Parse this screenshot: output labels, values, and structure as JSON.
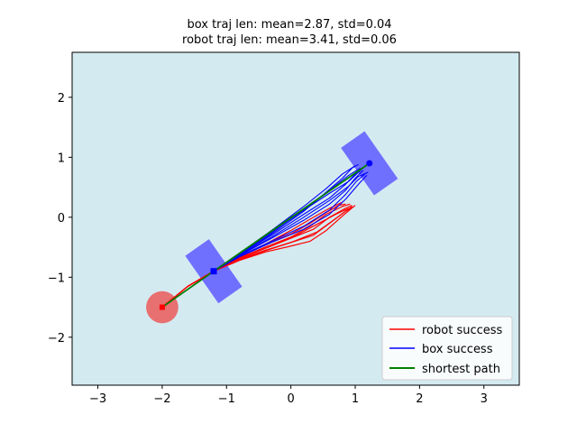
{
  "chart_data": {
    "type": "line",
    "title_lines": [
      "box traj len: mean=2.87, std=0.04",
      "robot traj len: mean=3.41, std=0.06"
    ],
    "xlabel": "",
    "ylabel": "",
    "xlim": [
      -3.4,
      3.55
    ],
    "ylim": [
      -2.8,
      2.75
    ],
    "xticks": [
      -3,
      -2,
      -1,
      0,
      1,
      2,
      3
    ],
    "yticks": [
      -2,
      -1,
      0,
      1,
      2
    ],
    "grid": false,
    "legend_position": "lower-right",
    "background_color": "#d4eaf1",
    "legend": [
      {
        "label": "robot success",
        "color": "#ff0000"
      },
      {
        "label": "box success",
        "color": "#0000ff"
      },
      {
        "label": "shortest path",
        "color": "#008000"
      }
    ],
    "robot_start": {
      "x": -2.0,
      "y": -1.5,
      "radius": 0.25,
      "color": "#e87070"
    },
    "box_start": {
      "x": -1.2,
      "y": -0.9,
      "length": 0.9,
      "width": 0.45,
      "angle_deg": -55,
      "color": "#7070ff"
    },
    "box_goal": {
      "x": 1.22,
      "y": 0.9,
      "length": 0.9,
      "width": 0.45,
      "angle_deg": -55,
      "color": "#7070ff"
    },
    "shortest_path": [
      [
        -2.0,
        -1.5
      ],
      [
        -1.2,
        -0.9
      ],
      [
        1.22,
        0.9
      ]
    ],
    "robot_trajectories": [
      [
        [
          -2.0,
          -1.5
        ],
        [
          -1.6,
          -1.15
        ],
        [
          -1.2,
          -0.9
        ],
        [
          -0.8,
          -0.72
        ],
        [
          -0.4,
          -0.58
        ],
        [
          0.0,
          -0.48
        ],
        [
          0.3,
          -0.4
        ],
        [
          0.55,
          -0.22
        ],
        [
          0.8,
          0.02
        ],
        [
          1.0,
          0.2
        ]
      ],
      [
        [
          -2.0,
          -1.5
        ],
        [
          -1.6,
          -1.15
        ],
        [
          -1.2,
          -0.9
        ],
        [
          -0.8,
          -0.7
        ],
        [
          -0.4,
          -0.55
        ],
        [
          0.0,
          -0.42
        ],
        [
          0.35,
          -0.3
        ],
        [
          0.6,
          -0.1
        ],
        [
          0.85,
          0.1
        ],
        [
          0.98,
          0.18
        ]
      ],
      [
        [
          -2.0,
          -1.5
        ],
        [
          -1.6,
          -1.15
        ],
        [
          -1.2,
          -0.9
        ],
        [
          -0.8,
          -0.68
        ],
        [
          -0.4,
          -0.5
        ],
        [
          0.0,
          -0.35
        ],
        [
          0.35,
          -0.2
        ],
        [
          0.6,
          0.0
        ],
        [
          0.85,
          0.15
        ],
        [
          0.95,
          0.2
        ]
      ],
      [
        [
          -2.0,
          -1.5
        ],
        [
          -1.6,
          -1.15
        ],
        [
          -1.2,
          -0.9
        ],
        [
          -0.8,
          -0.68
        ],
        [
          -0.4,
          -0.5
        ],
        [
          0.0,
          -0.33
        ],
        [
          0.3,
          -0.15
        ],
        [
          0.55,
          0.05
        ],
        [
          0.8,
          0.18
        ],
        [
          0.92,
          0.22
        ]
      ],
      [
        [
          -2.0,
          -1.5
        ],
        [
          -1.6,
          -1.15
        ],
        [
          -1.2,
          -0.9
        ],
        [
          -0.8,
          -0.67
        ],
        [
          -0.4,
          -0.45
        ],
        [
          0.0,
          -0.28
        ],
        [
          0.3,
          -0.1
        ],
        [
          0.55,
          0.08
        ],
        [
          0.75,
          0.2
        ],
        [
          0.85,
          0.22
        ]
      ],
      [
        [
          -2.0,
          -1.5
        ],
        [
          -1.6,
          -1.15
        ],
        [
          -1.2,
          -0.9
        ],
        [
          -0.8,
          -0.66
        ],
        [
          -0.4,
          -0.45
        ],
        [
          0.0,
          -0.22
        ],
        [
          0.35,
          0.0
        ],
        [
          0.6,
          0.15
        ],
        [
          0.8,
          0.25
        ]
      ],
      [
        [
          -2.0,
          -1.5
        ],
        [
          -1.6,
          -1.15
        ],
        [
          -1.2,
          -0.9
        ],
        [
          -0.8,
          -0.69
        ],
        [
          -0.4,
          -0.52
        ],
        [
          0.0,
          -0.35
        ],
        [
          0.4,
          -0.12
        ],
        [
          0.7,
          0.05
        ],
        [
          0.9,
          0.15
        ]
      ],
      [
        [
          -2.0,
          -1.5
        ],
        [
          -1.6,
          -1.15
        ],
        [
          -1.2,
          -0.9
        ],
        [
          -0.8,
          -0.71
        ],
        [
          -0.4,
          -0.56
        ],
        [
          0.0,
          -0.42
        ],
        [
          0.4,
          -0.25
        ],
        [
          0.7,
          -0.02
        ],
        [
          0.95,
          0.18
        ]
      ]
    ],
    "box_trajectories": [
      [
        [
          -1.2,
          -0.9
        ],
        [
          -0.8,
          -0.6
        ],
        [
          -0.3,
          -0.25
        ],
        [
          0.2,
          0.12
        ],
        [
          0.6,
          0.4
        ],
        [
          0.9,
          0.6
        ],
        [
          1.05,
          0.75
        ],
        [
          1.15,
          0.85
        ]
      ],
      [
        [
          -1.2,
          -0.9
        ],
        [
          -0.8,
          -0.62
        ],
        [
          -0.3,
          -0.3
        ],
        [
          0.2,
          0.05
        ],
        [
          0.6,
          0.32
        ],
        [
          0.85,
          0.55
        ],
        [
          1.0,
          0.72
        ],
        [
          1.1,
          0.82
        ]
      ],
      [
        [
          -1.2,
          -0.9
        ],
        [
          -0.8,
          -0.64
        ],
        [
          -0.3,
          -0.35
        ],
        [
          0.2,
          -0.05
        ],
        [
          0.6,
          0.22
        ],
        [
          0.85,
          0.45
        ],
        [
          1.0,
          0.65
        ],
        [
          1.12,
          0.78
        ]
      ],
      [
        [
          -1.2,
          -0.9
        ],
        [
          -0.8,
          -0.65
        ],
        [
          -0.3,
          -0.4
        ],
        [
          0.2,
          -0.15
        ],
        [
          0.6,
          0.12
        ],
        [
          0.85,
          0.38
        ],
        [
          1.02,
          0.6
        ],
        [
          1.15,
          0.72
        ]
      ],
      [
        [
          -1.2,
          -0.9
        ],
        [
          -0.8,
          -0.66
        ],
        [
          -0.3,
          -0.42
        ],
        [
          0.2,
          -0.2
        ],
        [
          0.6,
          0.05
        ],
        [
          0.85,
          0.3
        ],
        [
          1.05,
          0.55
        ],
        [
          1.18,
          0.7
        ]
      ],
      [
        [
          -1.2,
          -0.9
        ],
        [
          -0.8,
          -0.62
        ],
        [
          -0.3,
          -0.28
        ],
        [
          0.2,
          0.1
        ],
        [
          0.55,
          0.42
        ],
        [
          0.8,
          0.65
        ],
        [
          0.95,
          0.82
        ],
        [
          1.05,
          0.88
        ]
      ],
      [
        [
          -1.2,
          -0.9
        ],
        [
          -0.8,
          -0.6
        ],
        [
          -0.3,
          -0.22
        ],
        [
          0.2,
          0.18
        ],
        [
          0.55,
          0.48
        ],
        [
          0.8,
          0.72
        ],
        [
          1.0,
          0.86
        ]
      ],
      [
        [
          -1.2,
          -0.9
        ],
        [
          -0.8,
          -0.63
        ],
        [
          -0.3,
          -0.33
        ],
        [
          0.2,
          0.0
        ],
        [
          0.6,
          0.28
        ],
        [
          0.9,
          0.52
        ],
        [
          1.05,
          0.68
        ],
        [
          1.2,
          0.75
        ]
      ],
      [
        [
          -1.2,
          -0.9
        ],
        [
          -0.8,
          -0.61
        ],
        [
          -0.3,
          -0.26
        ],
        [
          0.2,
          0.14
        ],
        [
          0.6,
          0.45
        ],
        [
          0.9,
          0.7
        ],
        [
          1.08,
          0.82
        ]
      ]
    ]
  }
}
